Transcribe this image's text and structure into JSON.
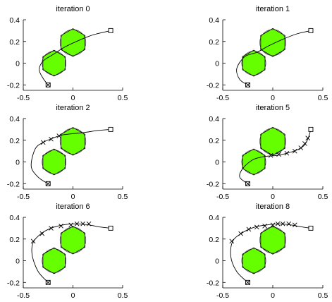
{
  "chart_data": [
    {
      "type": "scatter",
      "title": "iteration 0",
      "xlim": [
        -0.5,
        0.5
      ],
      "ylim": [
        -0.25,
        0.4
      ],
      "xticks": [
        -0.5,
        0,
        0.5
      ],
      "yticks": [
        0.4,
        0.2,
        0,
        -0.2
      ],
      "tick_labels_x": [
        "-0.5",
        "0",
        "0.5"
      ],
      "tick_labels_y": [
        "0.4",
        "0.2",
        "0",
        "-0.2"
      ],
      "obstacles": [
        {
          "cx": 0.0,
          "cy": 0.19,
          "r": 0.14
        },
        {
          "cx": -0.19,
          "cy": 0.0,
          "r": 0.13
        }
      ],
      "start": [
        -0.25,
        -0.2
      ],
      "goal": [
        0.38,
        0.3
      ],
      "trajectory": [
        [
          -0.25,
          -0.2
        ],
        [
          -0.3,
          -0.14
        ],
        [
          -0.34,
          -0.06
        ],
        [
          -0.3,
          0.02
        ],
        [
          -0.2,
          0.08
        ],
        [
          -0.08,
          0.15
        ],
        [
          0.06,
          0.21
        ],
        [
          0.2,
          0.26
        ],
        [
          0.38,
          0.3
        ]
      ],
      "waypoints": []
    },
    {
      "type": "scatter",
      "title": "iteration 1",
      "xlim": [
        -0.5,
        0.5
      ],
      "ylim": [
        -0.25,
        0.4
      ],
      "xticks": [
        -0.5,
        0,
        0.5
      ],
      "yticks": [
        0.4,
        0.2,
        0,
        -0.2
      ],
      "tick_labels_x": [
        "-0.5",
        "0",
        "0.5"
      ],
      "tick_labels_y": [
        "0.4",
        "0.2",
        "0",
        "-0.2"
      ],
      "obstacles": [
        {
          "cx": 0.0,
          "cy": 0.19,
          "r": 0.14
        },
        {
          "cx": -0.19,
          "cy": 0.0,
          "r": 0.13
        }
      ],
      "start": [
        -0.25,
        -0.2
      ],
      "goal": [
        0.38,
        0.3
      ],
      "trajectory": [
        [
          -0.25,
          -0.2
        ],
        [
          -0.33,
          -0.15
        ],
        [
          -0.36,
          -0.05
        ],
        [
          -0.28,
          0.06
        ],
        [
          -0.16,
          0.1
        ],
        [
          -0.04,
          0.16
        ],
        [
          0.1,
          0.22
        ],
        [
          0.24,
          0.27
        ],
        [
          0.38,
          0.3
        ]
      ],
      "waypoints": []
    },
    {
      "type": "scatter",
      "title": "iteration 2",
      "xlim": [
        -0.5,
        0.5
      ],
      "ylim": [
        -0.25,
        0.4
      ],
      "xticks": [
        -0.5,
        0,
        0.5
      ],
      "yticks": [
        0.4,
        0.2,
        0,
        -0.2
      ],
      "tick_labels_x": [
        "-0.5",
        "0",
        "0.5"
      ],
      "tick_labels_y": [
        "0.4",
        "0.2",
        "0",
        "-0.2"
      ],
      "obstacles": [
        {
          "cx": 0.0,
          "cy": 0.19,
          "r": 0.14
        },
        {
          "cx": -0.19,
          "cy": 0.0,
          "r": 0.13
        }
      ],
      "start": [
        -0.25,
        -0.2
      ],
      "goal": [
        0.38,
        0.3
      ],
      "trajectory": [
        [
          -0.25,
          -0.2
        ],
        [
          -0.35,
          -0.14
        ],
        [
          -0.42,
          -0.04
        ],
        [
          -0.38,
          0.12
        ],
        [
          -0.3,
          0.18
        ],
        [
          -0.2,
          0.22
        ],
        [
          -0.1,
          0.25
        ],
        [
          0.1,
          0.27
        ],
        [
          0.25,
          0.29
        ],
        [
          0.38,
          0.3
        ]
      ],
      "waypoints": [
        [
          -0.3,
          0.18
        ],
        [
          -0.22,
          0.21
        ],
        [
          -0.14,
          0.24
        ]
      ]
    },
    {
      "type": "scatter",
      "title": "iteration 5",
      "xlim": [
        -0.5,
        0.5
      ],
      "ylim": [
        -0.25,
        0.4
      ],
      "xticks": [
        -0.5,
        0,
        0.5
      ],
      "yticks": [
        0.4,
        0.2,
        0,
        -0.2
      ],
      "tick_labels_x": [
        "-0.5",
        "0",
        "0.5"
      ],
      "tick_labels_y": [
        "0.4",
        "0.2",
        "0",
        "-0.2"
      ],
      "obstacles": [
        {
          "cx": 0.0,
          "cy": 0.19,
          "r": 0.14
        },
        {
          "cx": -0.19,
          "cy": 0.0,
          "r": 0.13
        }
      ],
      "start": [
        -0.25,
        -0.2
      ],
      "goal": [
        0.38,
        0.3
      ],
      "trajectory": [
        [
          -0.25,
          -0.2
        ],
        [
          -0.33,
          -0.14
        ],
        [
          -0.3,
          -0.06
        ],
        [
          -0.2,
          0.02
        ],
        [
          -0.08,
          0.05
        ],
        [
          0.04,
          0.06
        ],
        [
          0.14,
          0.08
        ],
        [
          0.24,
          0.11
        ],
        [
          0.31,
          0.15
        ],
        [
          0.35,
          0.21
        ],
        [
          0.38,
          0.3
        ]
      ],
      "waypoints": [
        [
          -0.02,
          0.06
        ],
        [
          0.06,
          0.07
        ],
        [
          0.14,
          0.08
        ],
        [
          0.22,
          0.1
        ],
        [
          0.28,
          0.13
        ],
        [
          0.32,
          0.17
        ],
        [
          0.35,
          0.22
        ]
      ]
    },
    {
      "type": "scatter",
      "title": "iteration 6",
      "xlim": [
        -0.5,
        0.5
      ],
      "ylim": [
        -0.25,
        0.4
      ],
      "xticks": [
        -0.5,
        0,
        0.5
      ],
      "yticks": [
        0.4,
        0.2,
        0,
        -0.2
      ],
      "tick_labels_x": [
        "-0.5",
        "0",
        "0.5"
      ],
      "tick_labels_y": [
        "0.4",
        "0.2",
        "0",
        "-0.2"
      ],
      "obstacles": [
        {
          "cx": 0.0,
          "cy": 0.19,
          "r": 0.14
        },
        {
          "cx": -0.19,
          "cy": 0.0,
          "r": 0.13
        }
      ],
      "start": [
        -0.25,
        -0.2
      ],
      "goal": [
        0.38,
        0.3
      ],
      "trajectory": [
        [
          -0.25,
          -0.2
        ],
        [
          -0.35,
          -0.1
        ],
        [
          -0.41,
          0.05
        ],
        [
          -0.4,
          0.17
        ],
        [
          -0.32,
          0.25
        ],
        [
          -0.22,
          0.3
        ],
        [
          -0.1,
          0.33
        ],
        [
          0.04,
          0.34
        ],
        [
          0.16,
          0.33
        ],
        [
          0.28,
          0.31
        ],
        [
          0.38,
          0.3
        ]
      ],
      "waypoints": [
        [
          -0.4,
          0.18
        ],
        [
          -0.31,
          0.25
        ],
        [
          -0.22,
          0.3
        ],
        [
          -0.12,
          0.32
        ],
        [
          -0.02,
          0.33
        ],
        [
          0.04,
          0.34
        ],
        [
          0.1,
          0.34
        ],
        [
          0.16,
          0.34
        ]
      ]
    },
    {
      "type": "scatter",
      "title": "iteration 8",
      "xlim": [
        -0.5,
        0.5
      ],
      "ylim": [
        -0.25,
        0.4
      ],
      "xticks": [
        -0.5,
        0,
        0.5
      ],
      "yticks": [
        0.4,
        0.2,
        0,
        -0.2
      ],
      "tick_labels_x": [
        "-0.5",
        "0",
        "0.5"
      ],
      "tick_labels_y": [
        "0.4",
        "0.2",
        "0",
        "-0.2"
      ],
      "obstacles": [
        {
          "cx": 0.0,
          "cy": 0.19,
          "r": 0.14
        },
        {
          "cx": -0.19,
          "cy": 0.0,
          "r": 0.13
        }
      ],
      "start": [
        -0.25,
        -0.2
      ],
      "goal": [
        0.38,
        0.3
      ],
      "trajectory": [
        [
          -0.25,
          -0.2
        ],
        [
          -0.36,
          -0.1
        ],
        [
          -0.42,
          0.04
        ],
        [
          -0.4,
          0.18
        ],
        [
          -0.3,
          0.26
        ],
        [
          -0.18,
          0.31
        ],
        [
          -0.06,
          0.33
        ],
        [
          0.06,
          0.34
        ],
        [
          0.18,
          0.33
        ],
        [
          0.3,
          0.31
        ],
        [
          0.38,
          0.3
        ]
      ],
      "waypoints": [
        [
          -0.41,
          0.18
        ],
        [
          -0.32,
          0.25
        ],
        [
          -0.24,
          0.29
        ],
        [
          -0.16,
          0.31
        ],
        [
          -0.08,
          0.32
        ],
        [
          0.0,
          0.33
        ],
        [
          0.05,
          0.34
        ],
        [
          0.1,
          0.34
        ],
        [
          0.16,
          0.34
        ],
        [
          0.22,
          0.33
        ]
      ]
    }
  ],
  "colors": {
    "obstacle_fill": "#66ff00",
    "line": "#000000",
    "background": "#ffffff"
  }
}
